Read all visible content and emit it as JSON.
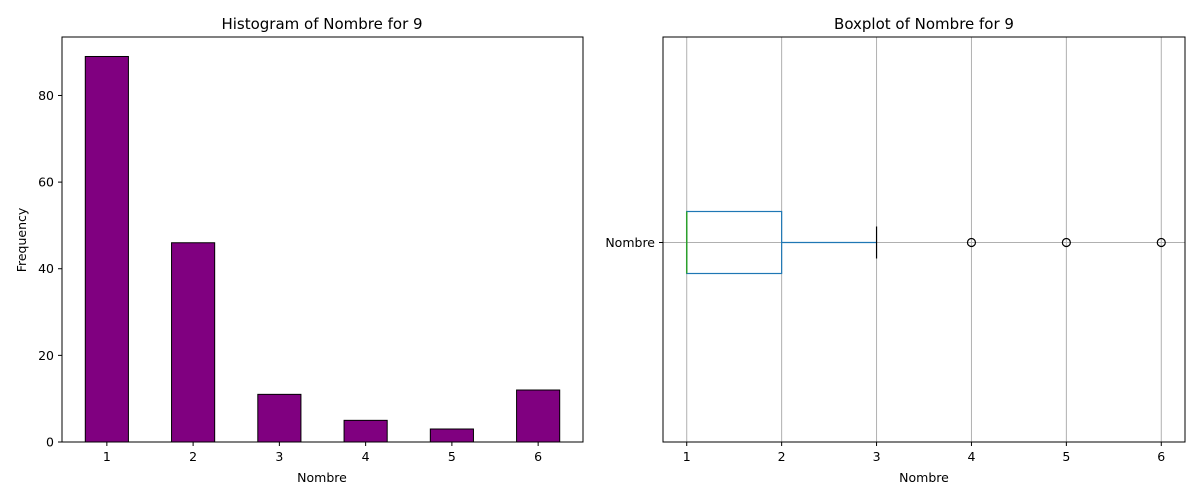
{
  "chart_data": [
    {
      "type": "bar",
      "title": "Histogram of Nombre for 9",
      "xlabel": "Nombre",
      "ylabel": "Frequency",
      "categories": [
        "1",
        "2",
        "3",
        "4",
        "5",
        "6"
      ],
      "values": [
        89,
        46,
        11,
        5,
        3,
        12
      ],
      "ylim": [
        0,
        93.5
      ],
      "yticks": [
        0,
        20,
        40,
        60,
        80
      ],
      "bar_color": "#800080",
      "edge_color": "#000000",
      "grid": false
    },
    {
      "type": "boxplot",
      "title": "Boxplot of Nombre for 9",
      "xlabel": "Nombre",
      "category": "Nombre",
      "orientation": "horizontal",
      "xlim": [
        0.75,
        6.25
      ],
      "xticks": [
        1,
        2,
        3,
        4,
        5,
        6
      ],
      "stats": {
        "whislo": 1,
        "q1": 1,
        "median": 1,
        "q3": 2,
        "whishi": 3
      },
      "fliers": [
        4,
        5,
        6
      ],
      "box_color": "#1f77b4",
      "median_color": "#2ca02c",
      "grid": true
    }
  ]
}
